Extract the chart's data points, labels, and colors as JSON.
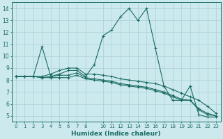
{
  "xlabel": "Humidex (Indice chaleur)",
  "ylabel": "",
  "xlim": [
    -0.5,
    23.5
  ],
  "ylim": [
    4.5,
    14.5
  ],
  "xtick_vals": [
    0,
    1,
    2,
    3,
    4,
    5,
    6,
    7,
    8,
    10,
    11,
    12,
    13,
    14,
    15,
    16,
    17,
    18,
    19,
    20,
    21,
    22,
    23
  ],
  "xtick_labels": [
    "0",
    "1",
    "2",
    "3",
    "4",
    "5",
    "6",
    "7",
    "8",
    "10",
    "11",
    "12",
    "13",
    "14",
    "15",
    "16",
    "17",
    "18",
    "19",
    "20",
    "21",
    "22",
    "23"
  ],
  "yticks": [
    5,
    6,
    7,
    8,
    9,
    10,
    11,
    12,
    13,
    14
  ],
  "bg_color": "#cce9ee",
  "grid_color": "#aed4da",
  "line_color": "#1a6b62",
  "lines": [
    {
      "x": [
        0,
        1,
        2,
        3,
        4,
        5,
        6,
        7,
        8,
        9,
        10,
        11,
        12,
        13,
        14,
        15,
        16,
        17,
        18,
        19,
        20,
        21,
        22,
        23
      ],
      "y": [
        8.3,
        8.3,
        8.3,
        10.8,
        8.3,
        8.5,
        8.8,
        8.8,
        8.3,
        9.3,
        11.7,
        12.2,
        13.3,
        14.0,
        13.0,
        14.0,
        10.7,
        7.5,
        6.3,
        6.3,
        7.5,
        5.1,
        4.9,
        4.9
      ]
    },
    {
      "x": [
        0,
        1,
        2,
        3,
        4,
        5,
        6,
        7,
        8,
        9,
        10,
        11,
        12,
        13,
        14,
        15,
        16,
        17,
        18,
        19,
        20,
        21,
        22,
        23
      ],
      "y": [
        8.3,
        8.3,
        8.3,
        8.3,
        8.5,
        8.8,
        9.0,
        9.0,
        8.5,
        8.5,
        8.4,
        8.3,
        8.1,
        8.0,
        7.9,
        7.8,
        7.7,
        7.5,
        7.2,
        6.9,
        6.6,
        6.3,
        5.8,
        5.2
      ]
    },
    {
      "x": [
        0,
        1,
        2,
        3,
        4,
        5,
        6,
        7,
        8,
        9,
        10,
        11,
        12,
        13,
        14,
        15,
        16,
        17,
        18,
        19,
        20,
        21,
        22,
        23
      ],
      "y": [
        8.3,
        8.3,
        8.3,
        8.2,
        8.3,
        8.4,
        8.4,
        8.6,
        8.2,
        8.1,
        8.0,
        7.9,
        7.7,
        7.6,
        7.5,
        7.4,
        7.2,
        7.0,
        6.7,
        6.4,
        6.3,
        5.6,
        5.2,
        5.0
      ]
    },
    {
      "x": [
        0,
        1,
        2,
        3,
        4,
        5,
        6,
        7,
        8,
        9,
        10,
        11,
        12,
        13,
        14,
        15,
        16,
        17,
        18,
        19,
        20,
        21,
        22,
        23
      ],
      "y": [
        8.3,
        8.3,
        8.3,
        8.2,
        8.2,
        8.2,
        8.2,
        8.4,
        8.1,
        8.0,
        7.9,
        7.8,
        7.6,
        7.5,
        7.4,
        7.3,
        7.1,
        6.9,
        6.6,
        6.3,
        6.3,
        5.5,
        5.1,
        5.0
      ]
    }
  ]
}
